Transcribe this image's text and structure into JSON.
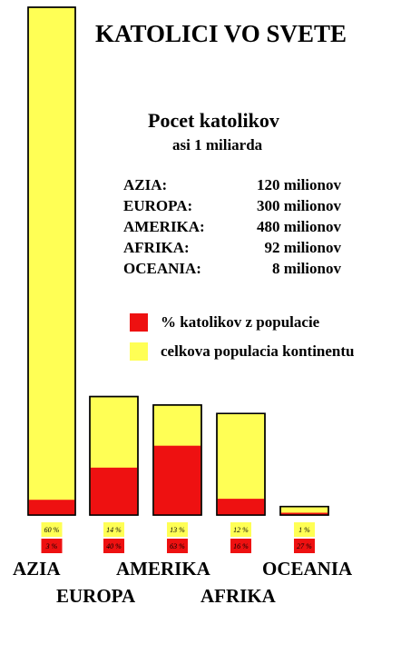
{
  "title": "KATOLICI VO SVETE",
  "subtitle": "Pocet katolikov",
  "subtitle2": "asi 1 miliarda",
  "stats": [
    {
      "continent": "AZIA:",
      "count": "120 milionov"
    },
    {
      "continent": "EUROPA:",
      "count": "300 milionov"
    },
    {
      "continent": "AMERIKA:",
      "count": "480 milionov"
    },
    {
      "continent": "AFRIKA:",
      "count": "92 milionov"
    },
    {
      "continent": "OCEANIA:",
      "count": "8 milionov"
    }
  ],
  "legend": [
    {
      "label": "% katolikov z populacie",
      "color": "#ee1111"
    },
    {
      "label": "celkova populacia kontinentu",
      "color": "#ffff55"
    }
  ],
  "colors": {
    "population": "#ffff55",
    "catholic": "#ee1111",
    "outline": "#000000"
  },
  "chart_data": {
    "type": "bar",
    "categories": [
      "AZIA",
      "EUROPA",
      "AMERIKA",
      "AFRIKA",
      "OCEANIA"
    ],
    "population_share_labels": [
      "60 %",
      "14 %",
      "13 %",
      "12 %",
      "1 %"
    ],
    "catholic_share_labels": [
      "3 %",
      "40 %",
      "63 %",
      "16 %",
      "27 %"
    ],
    "series": [
      {
        "name": "celkova populacia kontinentu",
        "values": [
          60,
          14,
          13,
          12,
          1
        ]
      },
      {
        "name": "% katolikov z populacie",
        "values": [
          3,
          40,
          63,
          16,
          27
        ]
      }
    ]
  }
}
